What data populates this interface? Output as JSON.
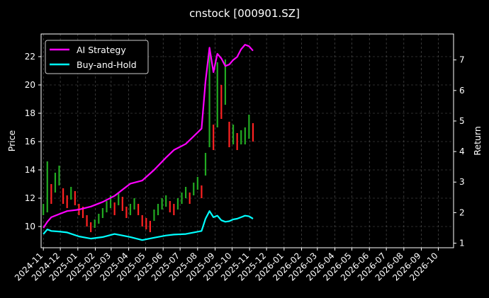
{
  "chart_data": {
    "type": "line",
    "title": "cnstock [000901.SZ]",
    "xlabel": "",
    "ylabel": "Price",
    "y2label": "Return",
    "x_tick_labels": [
      "2024-11",
      "2024-12",
      "2025-01",
      "2025-02",
      "2025-03",
      "2025-04",
      "2025-05",
      "2025-06",
      "2025-07",
      "2025-08",
      "2025-09",
      "2025-10",
      "2025-11",
      "2025-12",
      "2026-01",
      "2026-02",
      "2026-03",
      "2026-04",
      "2026-05",
      "2026-06",
      "2026-07",
      "2026-08",
      "2026-09",
      "2026-10"
    ],
    "xlim": [
      "2024-10-28",
      "2026-10-28"
    ],
    "ylim": [
      8.5,
      23.6
    ],
    "y_ticks": [
      10,
      12,
      14,
      16,
      18,
      20,
      22
    ],
    "y2lim": [
      0.85,
      7.85
    ],
    "y2_ticks": [
      1,
      2,
      3,
      4,
      5,
      6,
      7
    ],
    "grid": true,
    "legend_position": "upper-left",
    "price_series": {
      "name": "",
      "up_color": "#22aa22",
      "down_color": "#ff2222",
      "x": [
        "2024-11-01",
        "2024-11-08",
        "2024-11-15",
        "2024-11-22",
        "2024-11-29",
        "2024-12-06",
        "2024-12-13",
        "2024-12-20",
        "2024-12-27",
        "2025-01-03",
        "2025-01-10",
        "2025-01-17",
        "2025-01-24",
        "2025-01-31",
        "2025-02-07",
        "2025-02-14",
        "2025-02-21",
        "2025-02-28",
        "2025-03-07",
        "2025-03-14",
        "2025-03-21",
        "2025-03-28",
        "2025-04-04",
        "2025-04-11",
        "2025-04-18",
        "2025-04-25",
        "2025-05-02",
        "2025-05-09",
        "2025-05-16",
        "2025-05-23",
        "2025-05-30",
        "2025-06-06",
        "2025-06-13",
        "2025-06-20",
        "2025-06-27",
        "2025-07-04",
        "2025-07-11",
        "2025-07-18",
        "2025-07-25",
        "2025-08-01",
        "2025-08-08",
        "2025-08-15",
        "2025-08-22",
        "2025-08-29",
        "2025-09-05",
        "2025-09-12",
        "2025-09-19",
        "2025-09-26",
        "2025-10-03",
        "2025-10-10",
        "2025-10-17",
        "2025-10-24",
        "2025-10-31",
        "2025-11-07"
      ],
      "values": [
        11.2,
        14.0,
        12.3,
        13.0,
        13.6,
        12.2,
        11.8,
        12.4,
        12.0,
        11.2,
        11.0,
        10.4,
        10.0,
        10.2,
        10.6,
        11.0,
        11.4,
        11.8,
        11.2,
        12.0,
        11.6,
        11.0,
        11.2,
        11.6,
        11.2,
        10.4,
        10.2,
        10.0,
        10.8,
        11.2,
        11.6,
        11.8,
        11.4,
        11.2,
        11.6,
        12.0,
        12.4,
        12.0,
        12.6,
        13.0,
        12.4,
        14.4,
        17.0,
        16.0,
        19.6,
        18.4,
        20.2,
        16.2,
        16.4,
        16.0,
        16.2,
        16.4,
        17.2,
        16.6
      ],
      "highs": [
        11.6,
        14.6,
        13.0,
        13.8,
        14.3,
        12.7,
        12.2,
        12.8,
        12.5,
        11.6,
        11.4,
        10.8,
        10.3,
        10.5,
        10.9,
        11.3,
        11.8,
        12.2,
        11.7,
        12.4,
        12.1,
        11.4,
        11.6,
        12.0,
        11.6,
        10.8,
        10.6,
        10.4,
        11.2,
        11.6,
        12.0,
        12.2,
        11.8,
        11.6,
        12.0,
        12.4,
        12.8,
        12.4,
        13.1,
        13.5,
        12.9,
        15.2,
        22.4,
        17.2,
        21.6,
        20.0,
        21.8,
        17.4,
        17.2,
        16.6,
        16.8,
        17.0,
        17.9,
        17.3
      ],
      "lows": [
        10.8,
        11.0,
        11.6,
        12.4,
        12.9,
        11.6,
        11.3,
        11.9,
        11.5,
        10.8,
        10.6,
        10.0,
        9.6,
        9.9,
        10.2,
        10.6,
        11.0,
        11.3,
        10.8,
        11.5,
        11.1,
        10.6,
        10.8,
        11.2,
        10.8,
        10.0,
        9.8,
        9.6,
        10.4,
        10.8,
        11.2,
        11.4,
        11.0,
        10.8,
        11.2,
        11.6,
        12.0,
        11.6,
        12.2,
        12.6,
        12.0,
        13.6,
        15.6,
        15.4,
        17.0,
        17.6,
        18.6,
        15.6,
        15.8,
        15.4,
        15.8,
        15.8,
        16.2,
        16.0
      ]
    },
    "series": [
      {
        "name": "AI Strategy",
        "color": "#ff00ff",
        "axis": "return",
        "x": [
          "2024-11-01",
          "2024-11-08",
          "2024-11-15",
          "2024-11-29",
          "2024-12-13",
          "2025-01-03",
          "2025-01-24",
          "2025-02-14",
          "2025-03-07",
          "2025-03-21",
          "2025-04-04",
          "2025-04-25",
          "2025-05-16",
          "2025-06-06",
          "2025-06-20",
          "2025-07-11",
          "2025-07-25",
          "2025-08-08",
          "2025-08-15",
          "2025-08-22",
          "2025-08-29",
          "2025-09-05",
          "2025-09-12",
          "2025-09-19",
          "2025-09-26",
          "2025-10-03",
          "2025-10-10",
          "2025-10-17",
          "2025-10-24",
          "2025-10-31",
          "2025-11-07"
        ],
        "values": [
          1.5,
          1.7,
          1.85,
          1.95,
          2.05,
          2.1,
          2.2,
          2.35,
          2.55,
          2.75,
          2.95,
          3.05,
          3.4,
          3.8,
          4.05,
          4.25,
          4.5,
          4.75,
          6.3,
          7.4,
          6.6,
          7.2,
          7.05,
          6.8,
          6.85,
          7.0,
          7.1,
          7.35,
          7.5,
          7.45,
          7.3
        ]
      },
      {
        "name": "Buy-and-Hold",
        "color": "#00ffff",
        "axis": "return",
        "x": [
          "2024-11-01",
          "2024-11-08",
          "2024-11-15",
          "2024-11-29",
          "2024-12-13",
          "2025-01-03",
          "2025-01-24",
          "2025-02-14",
          "2025-03-07",
          "2025-03-21",
          "2025-04-04",
          "2025-04-25",
          "2025-05-16",
          "2025-06-06",
          "2025-06-20",
          "2025-07-11",
          "2025-07-25",
          "2025-08-08",
          "2025-08-15",
          "2025-08-22",
          "2025-08-29",
          "2025-09-05",
          "2025-09-12",
          "2025-09-19",
          "2025-09-26",
          "2025-10-03",
          "2025-10-10",
          "2025-10-17",
          "2025-10-24",
          "2025-10-31",
          "2025-11-07"
        ],
        "values": [
          1.3,
          1.45,
          1.4,
          1.38,
          1.35,
          1.22,
          1.15,
          1.2,
          1.3,
          1.25,
          1.2,
          1.1,
          1.18,
          1.25,
          1.28,
          1.3,
          1.35,
          1.4,
          1.8,
          2.05,
          1.85,
          1.9,
          1.75,
          1.7,
          1.72,
          1.78,
          1.8,
          1.85,
          1.9,
          1.88,
          1.8
        ]
      }
    ]
  }
}
